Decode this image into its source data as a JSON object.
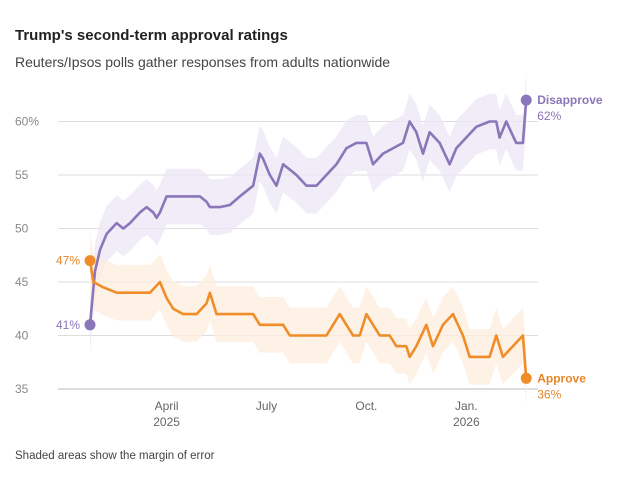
{
  "chart_data": {
    "type": "line",
    "title": "Trump's second-term approval ratings",
    "subtitle": "Reuters/Ipsos polls gather responses from adults nationwide",
    "note": "Shaded areas show the margin of error",
    "ylim": [
      35,
      62
    ],
    "yticks": [
      {
        "value": 60,
        "label": "60%"
      },
      {
        "value": 55,
        "label": "55"
      },
      {
        "value": 50,
        "label": "50"
      },
      {
        "value": 45,
        "label": "45"
      },
      {
        "value": 40,
        "label": "40"
      },
      {
        "value": 35,
        "label": "35"
      }
    ],
    "xticks": [
      {
        "t": 2.3,
        "month": "April",
        "year": "2025"
      },
      {
        "t": 5.3,
        "month": "July",
        "year": ""
      },
      {
        "t": 8.3,
        "month": "Oct.",
        "year": ""
      },
      {
        "t": 11.3,
        "month": "Jan.",
        "year": "2026"
      }
    ],
    "series": [
      {
        "name": "Disapprove",
        "color": "#8a76b8",
        "band_color": "#ebe6f5",
        "margin": 2.6,
        "end_value_label": "62%",
        "start_value_label": "41%",
        "points": [
          [
            0,
            41
          ],
          [
            0.15,
            46
          ],
          [
            0.3,
            48
          ],
          [
            0.5,
            49.5
          ],
          [
            0.8,
            50.5
          ],
          [
            1.0,
            50
          ],
          [
            1.2,
            50.5
          ],
          [
            1.5,
            51.5
          ],
          [
            1.7,
            52
          ],
          [
            1.9,
            51.5
          ],
          [
            2.0,
            51
          ],
          [
            2.1,
            51.5
          ],
          [
            2.3,
            53
          ],
          [
            2.6,
            53
          ],
          [
            3.0,
            53
          ],
          [
            3.3,
            53
          ],
          [
            3.5,
            52.5
          ],
          [
            3.6,
            52
          ],
          [
            3.9,
            52
          ],
          [
            4.2,
            52.2
          ],
          [
            4.5,
            53
          ],
          [
            4.9,
            54
          ],
          [
            5.1,
            57
          ],
          [
            5.2,
            56.5
          ],
          [
            5.4,
            55
          ],
          [
            5.6,
            54
          ],
          [
            5.8,
            56
          ],
          [
            6.0,
            55.5
          ],
          [
            6.2,
            55
          ],
          [
            6.5,
            54
          ],
          [
            6.8,
            54
          ],
          [
            7.1,
            55
          ],
          [
            7.4,
            56
          ],
          [
            7.7,
            57.5
          ],
          [
            8.0,
            58
          ],
          [
            8.3,
            58
          ],
          [
            8.5,
            56
          ],
          [
            8.8,
            57
          ],
          [
            9.1,
            57.5
          ],
          [
            9.4,
            58
          ],
          [
            9.6,
            60
          ],
          [
            9.8,
            59
          ],
          [
            10.0,
            57
          ],
          [
            10.2,
            59
          ],
          [
            10.5,
            58
          ],
          [
            10.8,
            56
          ],
          [
            11.0,
            57.5
          ],
          [
            11.3,
            58.5
          ],
          [
            11.6,
            59.5
          ],
          [
            12.0,
            60
          ],
          [
            12.2,
            60
          ],
          [
            12.3,
            58.5
          ],
          [
            12.5,
            60
          ],
          [
            12.8,
            58
          ],
          [
            13.0,
            58
          ],
          [
            13.1,
            62
          ]
        ]
      },
      {
        "name": "Approve",
        "color": "#f08d28",
        "band_color": "#fdeedd",
        "margin": 2.6,
        "end_value_label": "36%",
        "start_value_label": "47%",
        "points": [
          [
            0,
            47
          ],
          [
            0.1,
            45
          ],
          [
            0.4,
            44.5
          ],
          [
            0.8,
            44
          ],
          [
            1.2,
            44
          ],
          [
            1.6,
            44
          ],
          [
            1.8,
            44
          ],
          [
            2.1,
            45
          ],
          [
            2.3,
            43.5
          ],
          [
            2.5,
            42.5
          ],
          [
            2.8,
            42
          ],
          [
            3.2,
            42
          ],
          [
            3.5,
            43
          ],
          [
            3.6,
            44
          ],
          [
            3.8,
            42
          ],
          [
            4.2,
            42
          ],
          [
            4.6,
            42
          ],
          [
            4.9,
            42
          ],
          [
            5.1,
            41
          ],
          [
            5.5,
            41
          ],
          [
            5.8,
            41
          ],
          [
            6.0,
            40
          ],
          [
            6.4,
            40
          ],
          [
            6.8,
            40
          ],
          [
            7.1,
            40
          ],
          [
            7.3,
            41
          ],
          [
            7.5,
            42
          ],
          [
            7.7,
            41
          ],
          [
            7.9,
            40
          ],
          [
            8.1,
            40
          ],
          [
            8.3,
            42
          ],
          [
            8.5,
            41
          ],
          [
            8.7,
            40
          ],
          [
            9.0,
            40
          ],
          [
            9.2,
            39
          ],
          [
            9.5,
            39
          ],
          [
            9.6,
            38
          ],
          [
            9.8,
            39
          ],
          [
            10.1,
            41
          ],
          [
            10.3,
            39
          ],
          [
            10.6,
            41
          ],
          [
            10.9,
            42
          ],
          [
            11.2,
            40
          ],
          [
            11.4,
            38
          ],
          [
            11.7,
            38
          ],
          [
            12.0,
            38
          ],
          [
            12.2,
            40
          ],
          [
            12.4,
            38
          ],
          [
            12.7,
            39
          ],
          [
            13.0,
            40
          ],
          [
            13.1,
            36
          ]
        ]
      }
    ]
  }
}
